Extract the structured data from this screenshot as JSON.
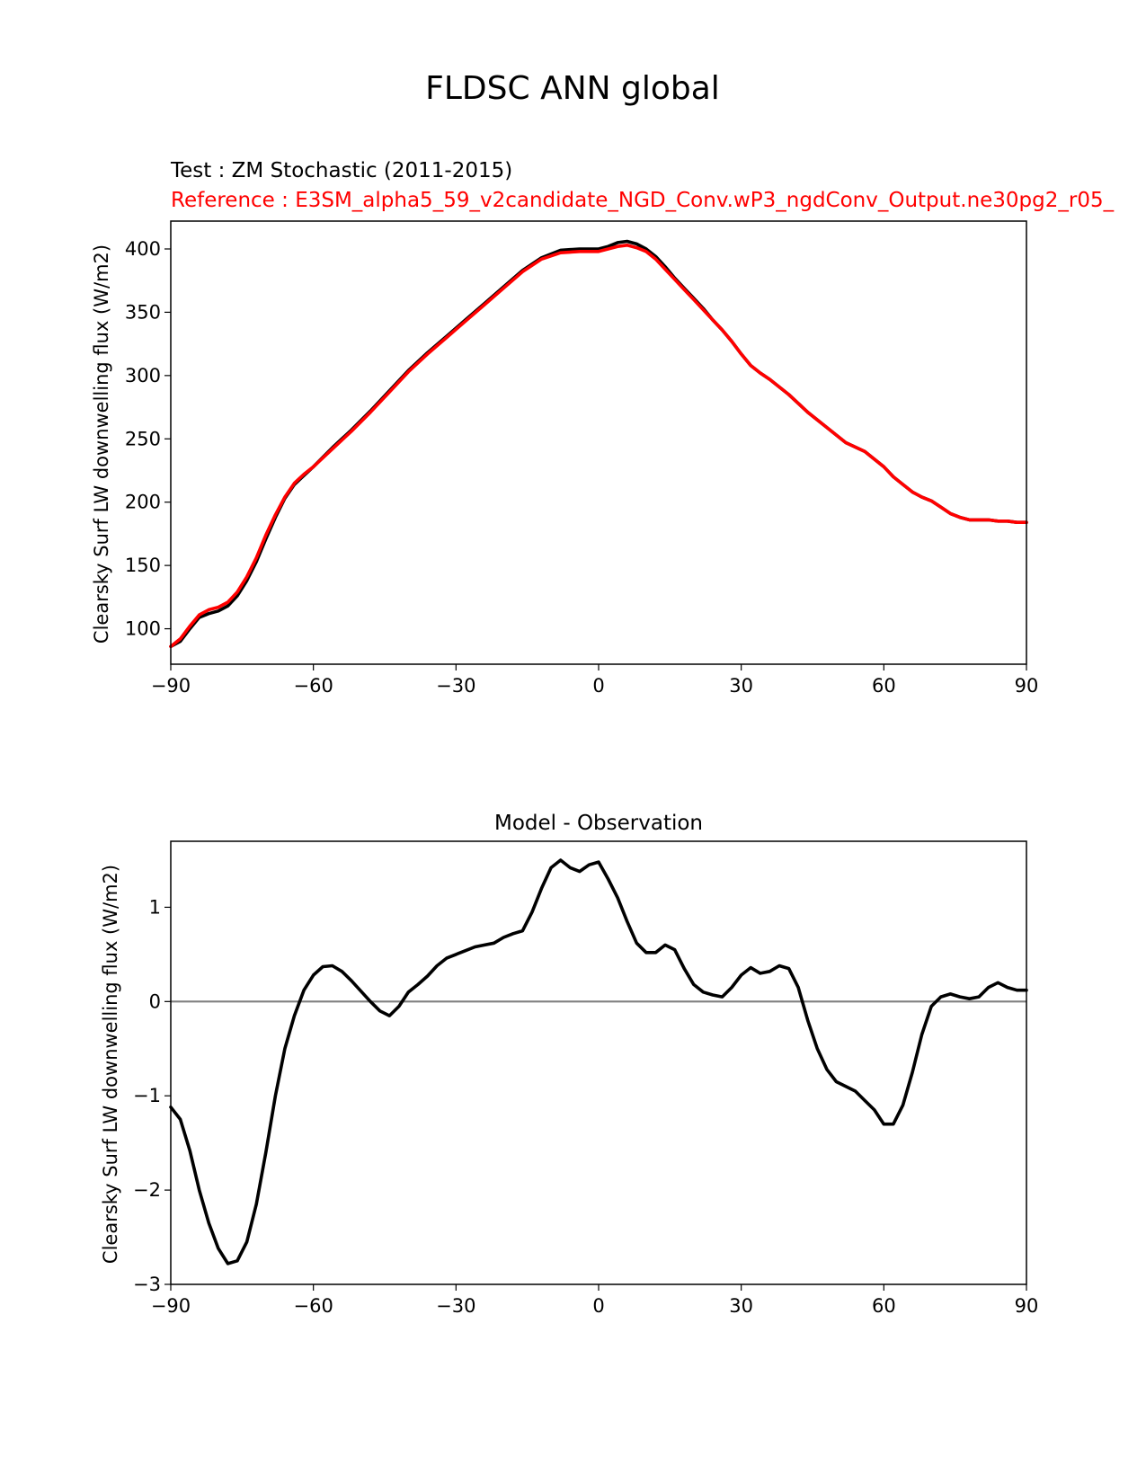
{
  "figure": {
    "title": "FLDSC ANN global"
  },
  "chart_data": [
    {
      "type": "line",
      "subtitle_test": "Test : ZM Stochastic (2011-2015)",
      "subtitle_reference": "Reference : E3SM_alpha5_59_v2candidate_NGD_Conv.wP3_ngdConv_Output.ne30pg2_r05_",
      "xlabel": "",
      "ylabel": "Clearsky Surf LW downwelling flux (W/m2)",
      "xlim": [
        -90,
        90
      ],
      "ylim": [
        72,
        422
      ],
      "xticks": [
        -90,
        -60,
        -30,
        0,
        30,
        60,
        90
      ],
      "xtick_labels": [
        "−90",
        "−60",
        "−30",
        "0",
        "30",
        "60",
        "90"
      ],
      "yticks": [
        100,
        150,
        200,
        250,
        300,
        350,
        400
      ],
      "ytick_labels": [
        "100",
        "150",
        "200",
        "250",
        "300",
        "350",
        "400"
      ],
      "grid": false,
      "colors": {
        "test": "#000000",
        "reference": "#ff0000"
      },
      "x": [
        -90,
        -88,
        -86,
        -84,
        -82,
        -80,
        -78,
        -76,
        -74,
        -72,
        -70,
        -68,
        -66,
        -64,
        -62,
        -60,
        -56,
        -52,
        -48,
        -44,
        -40,
        -36,
        -32,
        -28,
        -24,
        -20,
        -16,
        -12,
        -8,
        -4,
        0,
        2,
        4,
        6,
        8,
        10,
        12,
        14,
        16,
        18,
        20,
        22,
        24,
        26,
        28,
        30,
        32,
        34,
        36,
        40,
        44,
        48,
        52,
        56,
        60,
        62,
        64,
        66,
        68,
        70,
        72,
        74,
        76,
        78,
        80,
        82,
        84,
        86,
        88,
        90
      ],
      "series": [
        {
          "values": [
            86,
            90,
            100,
            109,
            112,
            114,
            118,
            126,
            138,
            153,
            171,
            188,
            203,
            214,
            221,
            228,
            243,
            257,
            272,
            288,
            304,
            318,
            331,
            344,
            357,
            370,
            383,
            393,
            399,
            400,
            400,
            402,
            405,
            406,
            404,
            400,
            394,
            386,
            377,
            369,
            361,
            353,
            344,
            336,
            327,
            317,
            308,
            302,
            297,
            285,
            271,
            259,
            247,
            240,
            228,
            220,
            214,
            208,
            204,
            201,
            196,
            191,
            188,
            186,
            186,
            186,
            185,
            185,
            184,
            184
          ]
        },
        {
          "values": [
            86,
            92,
            102,
            111,
            115,
            117,
            121,
            129,
            141,
            156,
            174,
            190,
            204,
            215,
            222,
            228,
            242,
            256,
            271,
            287,
            303,
            317,
            330,
            343,
            356,
            369,
            382,
            392,
            397,
            398,
            398,
            400,
            402,
            403,
            401,
            398,
            392,
            384,
            376,
            368,
            360,
            352,
            344,
            336,
            327,
            317,
            308,
            302,
            297,
            285,
            271,
            259,
            247,
            240,
            228,
            220,
            214,
            208,
            204,
            201,
            196,
            191,
            188,
            186,
            186,
            186,
            185,
            185,
            184,
            184
          ]
        }
      ]
    },
    {
      "type": "line",
      "title": "Model - Observation",
      "xlabel": "",
      "ylabel": "Clearsky Surf LW downwelling flux (W/m2)",
      "xlim": [
        -90,
        90
      ],
      "ylim": [
        -3,
        1.7
      ],
      "xticks": [
        -90,
        -60,
        -30,
        0,
        30,
        60,
        90
      ],
      "xtick_labels": [
        "−90",
        "−60",
        "−30",
        "0",
        "30",
        "60",
        "90"
      ],
      "yticks": [
        -3,
        -2,
        -1,
        0,
        1
      ],
      "ytick_labels": [
        "−3",
        "−2",
        "−1",
        "0",
        "1"
      ],
      "grid": false,
      "zero_line": 0,
      "colors": {
        "diff": "#000000",
        "zero_line": "#808080"
      },
      "x": [
        -90,
        -88,
        -86,
        -84,
        -82,
        -80,
        -78,
        -76,
        -74,
        -72,
        -70,
        -68,
        -66,
        -64,
        -62,
        -60,
        -58,
        -56,
        -54,
        -52,
        -50,
        -48,
        -46,
        -44,
        -42,
        -40,
        -38,
        -36,
        -34,
        -32,
        -30,
        -28,
        -26,
        -24,
        -22,
        -20,
        -18,
        -16,
        -14,
        -12,
        -10,
        -8,
        -6,
        -4,
        -2,
        0,
        2,
        4,
        6,
        8,
        10,
        12,
        14,
        16,
        18,
        20,
        22,
        24,
        26,
        28,
        30,
        32,
        34,
        36,
        38,
        40,
        42,
        44,
        46,
        48,
        50,
        52,
        54,
        56,
        58,
        60,
        62,
        64,
        66,
        68,
        70,
        72,
        74,
        76,
        78,
        80,
        82,
        84,
        86,
        88,
        90
      ],
      "series": [
        {
          "values": [
            -1.12,
            -1.25,
            -1.58,
            -2.0,
            -2.35,
            -2.62,
            -2.78,
            -2.75,
            -2.55,
            -2.15,
            -1.6,
            -1.0,
            -0.5,
            -0.15,
            0.12,
            0.28,
            0.37,
            0.38,
            0.32,
            0.22,
            0.11,
            0.0,
            -0.1,
            -0.15,
            -0.05,
            0.1,
            0.18,
            0.27,
            0.38,
            0.46,
            0.5,
            0.54,
            0.58,
            0.6,
            0.62,
            0.68,
            0.72,
            0.75,
            0.95,
            1.2,
            1.42,
            1.5,
            1.42,
            1.38,
            1.45,
            1.48,
            1.3,
            1.1,
            0.85,
            0.62,
            0.52,
            0.52,
            0.6,
            0.55,
            0.35,
            0.18,
            0.1,
            0.07,
            0.05,
            0.15,
            0.28,
            0.36,
            0.3,
            0.32,
            0.38,
            0.35,
            0.15,
            -0.2,
            -0.5,
            -0.72,
            -0.85,
            -0.9,
            -0.95,
            -1.05,
            -1.15,
            -1.3,
            -1.3,
            -1.1,
            -0.75,
            -0.35,
            -0.05,
            0.05,
            0.08,
            0.05,
            0.03,
            0.05,
            0.15,
            0.2,
            0.15,
            0.12,
            0.12
          ]
        }
      ]
    }
  ]
}
